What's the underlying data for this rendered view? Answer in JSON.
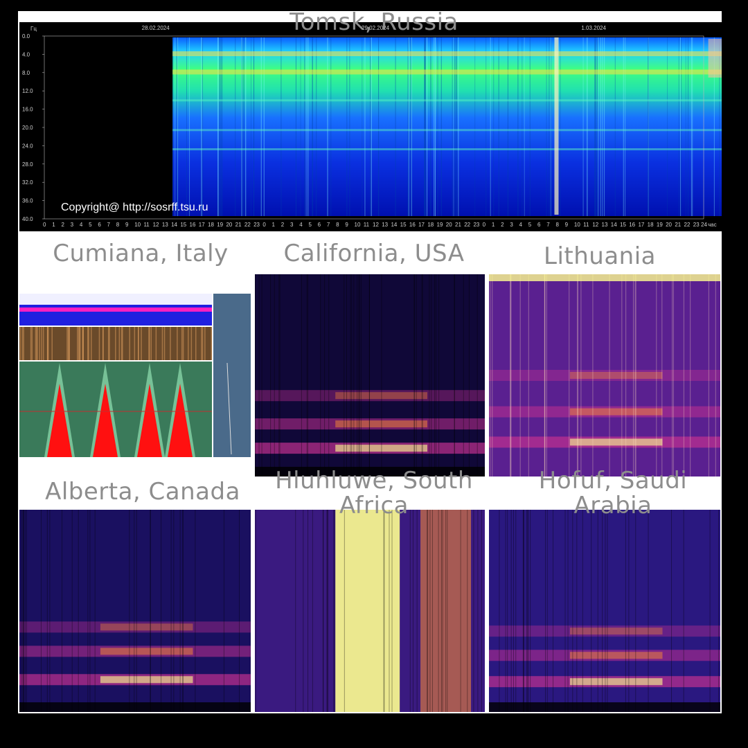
{
  "figure": {
    "titles": {
      "tomsk": "Tomsk, Russia",
      "cumiana": "Cumiana, Italy",
      "california": "California, USA",
      "lithuania": "Lithuania",
      "alberta": "Alberta, Canada",
      "hluhluwe": "Hluhluwe, South Africa",
      "hofuf": "Hofuf, Saudi Arabia"
    },
    "background_color": "#ffffff"
  },
  "chart_data": [
    {
      "type": "heatmap",
      "station": "Tomsk, Russia",
      "y_unit_label": "Гц",
      "x_unit_label": "час",
      "yticks": [
        "0.0",
        "4.0",
        "8.0",
        "12.0",
        "16.0",
        "20.0",
        "24.0",
        "28.0",
        "32.0",
        "36.0",
        "40.0"
      ],
      "dates": [
        "28.02.2024",
        "29.02.2024",
        "1.03.2024"
      ],
      "hour_ticks": [
        "0",
        "1",
        "2",
        "3",
        "4",
        "5",
        "6",
        "7",
        "8",
        "9",
        "10",
        "11",
        "12",
        "13",
        "14",
        "15",
        "16",
        "17",
        "18",
        "19",
        "20",
        "21",
        "22",
        "23"
      ],
      "final_hour_tick": "24",
      "data_span_hours": [
        14,
        76.5
      ],
      "resonance_bands_hz": [
        3.8,
        7.8,
        14.3,
        20.8,
        25.0
      ],
      "copyright": "Copyright@ http://sosrff.tsu.ru",
      "colormap": [
        "#0010d0",
        "#0060ff",
        "#20d0ff",
        "#40ff80",
        "#ffe040",
        "#ff8060"
      ]
    },
    {
      "type": "heatmap",
      "station": "Cumiana, Italy",
      "colormap": [
        "#ff1010",
        "#80e090",
        "#e0f0e0"
      ]
    },
    {
      "type": "heatmap",
      "station": "California, USA",
      "bands_fraction_from_top": [
        0.86,
        0.74,
        0.6
      ],
      "colormap": [
        "#080018",
        "#2a1aa0",
        "#c03090",
        "#ff9030",
        "#ffff90"
      ]
    },
    {
      "type": "heatmap",
      "station": "Lithuania",
      "bands_fraction_from_top": [
        0.83,
        0.68,
        0.5
      ],
      "colormap": [
        "#080018",
        "#2a1aa0",
        "#c03090",
        "#ff9030",
        "#ffff90"
      ]
    },
    {
      "type": "heatmap",
      "station": "Alberta, Canada",
      "bands_fraction_from_top": [
        0.84,
        0.7,
        0.58
      ],
      "colormap": [
        "#080018",
        "#2a1aa0",
        "#c03090",
        "#ff9030",
        "#ffff90"
      ]
    },
    {
      "type": "heatmap",
      "station": "Hluhluwe, South Africa",
      "colormap": [
        "#080018",
        "#2a1aa0",
        "#c03090",
        "#ff9030",
        "#ffff90"
      ]
    },
    {
      "type": "heatmap",
      "station": "Hofuf, Saudi Arabia",
      "bands_fraction_from_top": [
        0.85,
        0.72,
        0.6
      ],
      "colormap": [
        "#080018",
        "#2a1aa0",
        "#c03090",
        "#ff9030",
        "#ffff90"
      ]
    }
  ]
}
